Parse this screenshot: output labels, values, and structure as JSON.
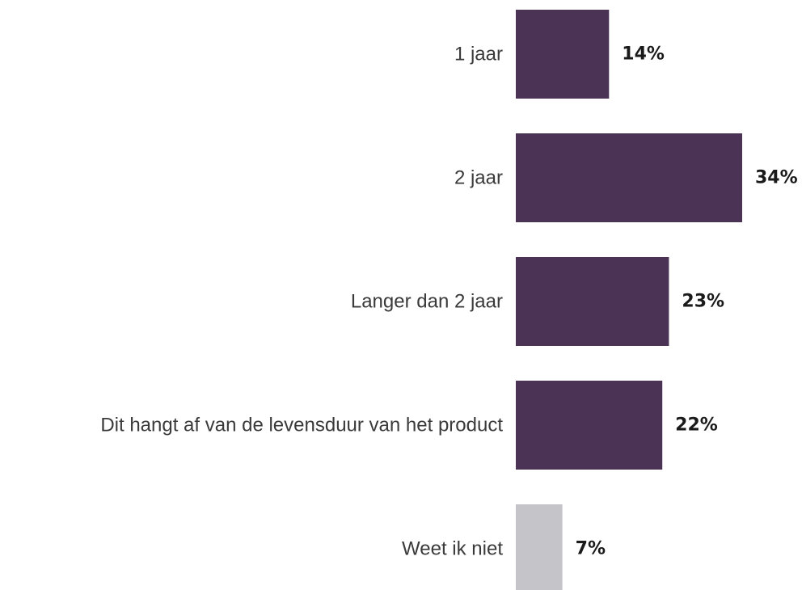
{
  "chart_data": {
    "type": "bar",
    "orientation": "horizontal",
    "categories": [
      "1 jaar",
      "2 jaar",
      "Langer dan 2 jaar",
      "Dit hangt af van de levensduur van het product",
      "Weet ik niet"
    ],
    "values": [
      14,
      34,
      23,
      22,
      7
    ],
    "value_labels": [
      "14%",
      "34%",
      "23%",
      "22%",
      "7%"
    ],
    "bar_colors": [
      "#4a3354",
      "#4a3354",
      "#4a3354",
      "#4a3354",
      "#c5c4c9"
    ],
    "value_label_colors": [
      "#1a1a1a",
      "#1a1a1a",
      "#1a1a1a",
      "#1a1a1a",
      "#3c3c3c"
    ],
    "unit": "%",
    "xlim": [
      0,
      34
    ],
    "grid": false,
    "legend": "none"
  }
}
